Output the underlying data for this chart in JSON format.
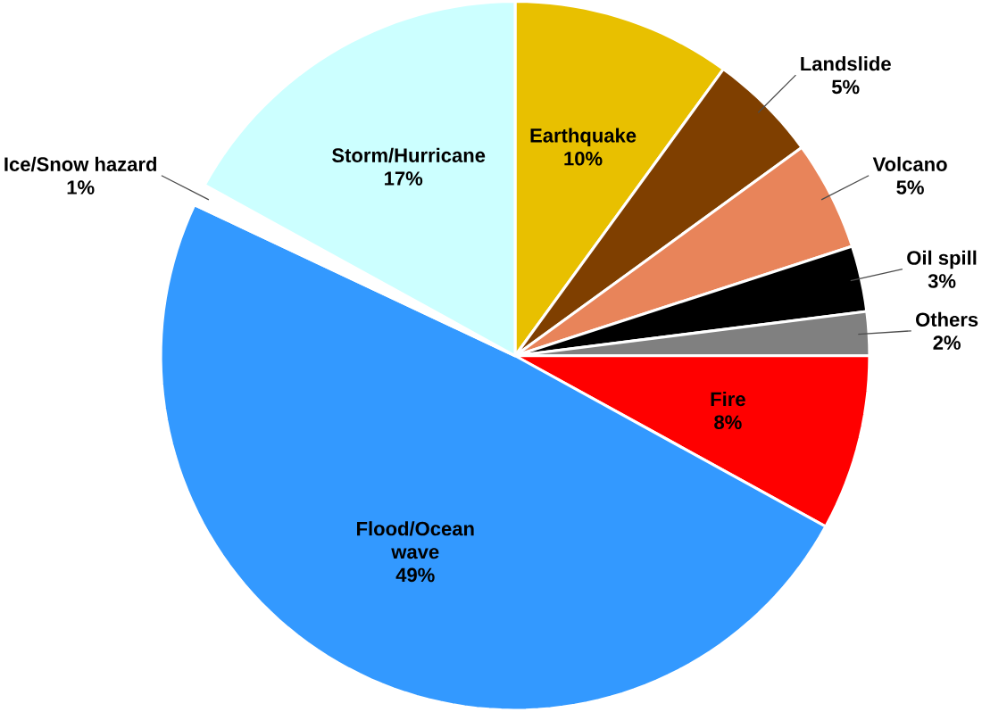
{
  "chart_data": {
    "type": "pie",
    "categories": [
      "Earthquake",
      "Landslide",
      "Volcano",
      "Oil spill",
      "Others",
      "Fire",
      "Flood/Ocean wave",
      "Ice/Snow hazard",
      "Storm/Hurricane"
    ],
    "values": [
      10,
      5,
      5,
      3,
      2,
      8,
      49,
      1,
      17
    ],
    "value_labels": [
      "10%",
      "5%",
      "5%",
      "3%",
      "2%",
      "8%",
      "49%",
      "1%",
      "17%"
    ],
    "colors": [
      "#e8c000",
      "#7f3f00",
      "#e8845a",
      "#000000",
      "#808080",
      "#ff0000",
      "#3399ff",
      "#ffffff",
      "#ccffff"
    ]
  }
}
